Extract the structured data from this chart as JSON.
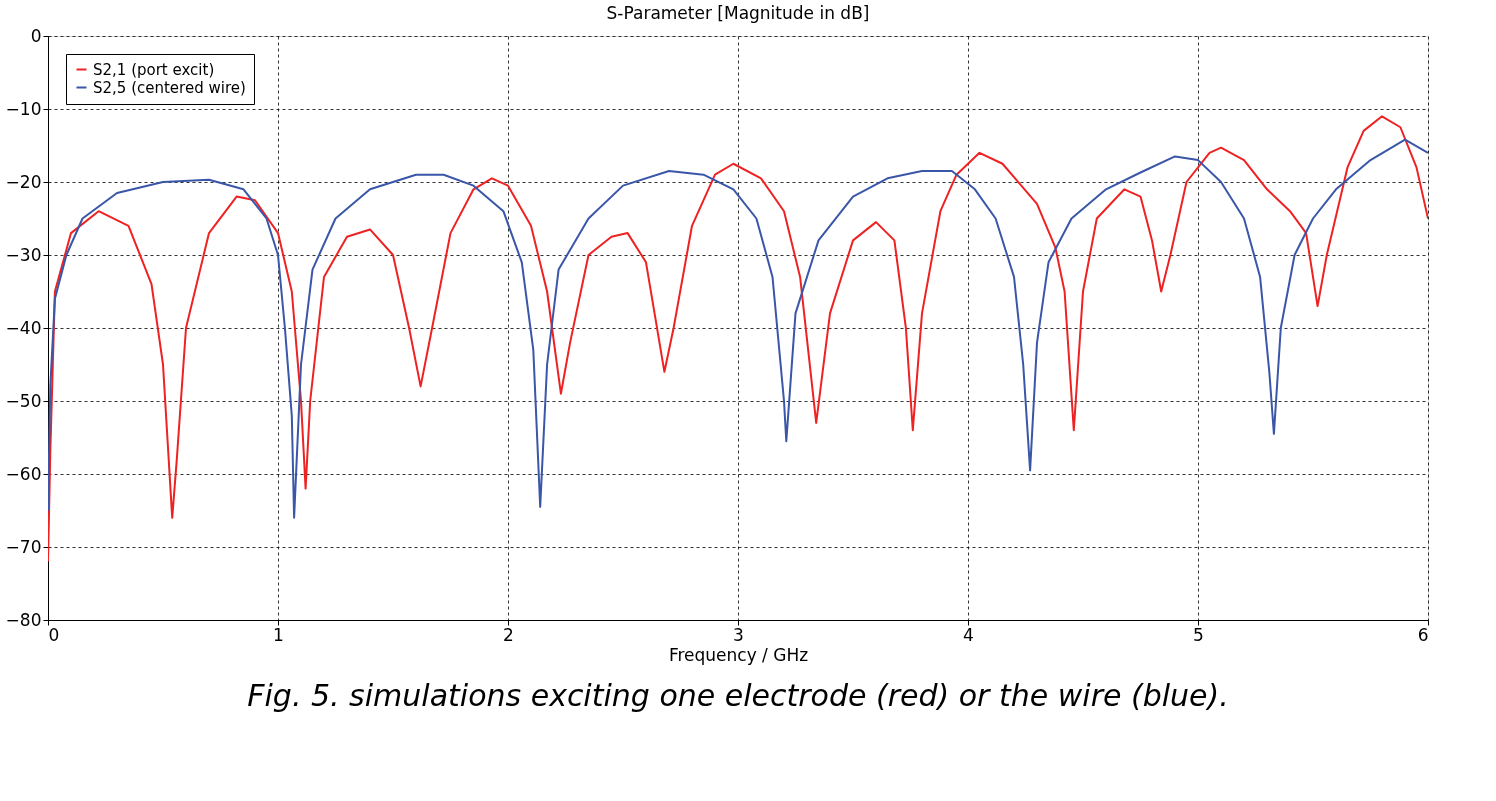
{
  "chart_data": {
    "type": "line",
    "title": "S-Parameter [Magnitude in dB]",
    "xlabel": "Frequency / GHz",
    "annotations": [
      "Fig. 5. simulations exciting one electrode (red) or the wire (blue)."
    ],
    "xlim": [
      0,
      6
    ],
    "xticks": [
      0,
      1,
      2,
      3,
      4,
      5,
      6
    ],
    "ylim": [
      -80,
      0
    ],
    "yticks": [
      -80,
      -70,
      -60,
      -50,
      -40,
      -30,
      -20,
      -10,
      0
    ],
    "grid": true,
    "legend": "top left",
    "line_style": "solid",
    "marker": "none",
    "series": [
      {
        "name": "S2,1 (port excit)",
        "color": "#ee2222",
        "x": [
          0,
          0.01,
          0.03,
          0.1,
          0.22,
          0.35,
          0.45,
          0.5,
          0.54,
          0.56,
          0.6,
          0.7,
          0.82,
          0.9,
          1.0,
          1.06,
          1.1,
          1.12,
          1.14,
          1.2,
          1.3,
          1.4,
          1.5,
          1.57,
          1.62,
          1.67,
          1.75,
          1.85,
          1.93,
          2.0,
          2.1,
          2.17,
          2.23,
          2.27,
          2.35,
          2.45,
          2.52,
          2.6,
          2.68,
          2.72,
          2.8,
          2.9,
          2.98,
          3.1,
          3.2,
          3.27,
          3.34,
          3.4,
          3.5,
          3.6,
          3.68,
          3.73,
          3.76,
          3.8,
          3.88,
          3.95,
          4.05,
          4.15,
          4.3,
          4.38,
          4.42,
          4.46,
          4.5,
          4.56,
          4.68,
          4.75,
          4.8,
          4.84,
          4.88,
          4.95,
          5.05,
          5.1,
          5.2,
          5.3,
          5.4,
          5.47,
          5.52,
          5.56,
          5.65,
          5.72,
          5.8,
          5.88,
          5.95,
          6.0
        ],
        "values": [
          -72,
          -57,
          -35,
          -27,
          -24,
          -26,
          -34,
          -45,
          -66,
          -58,
          -40,
          -27,
          -22,
          -22.5,
          -27,
          -35,
          -50,
          -62,
          -50,
          -33,
          -27.5,
          -26.5,
          -30,
          -40,
          -48,
          -40,
          -27,
          -21,
          -19.5,
          -20.5,
          -26,
          -35,
          -49,
          -42,
          -30,
          -27.5,
          -27,
          -31,
          -46,
          -40,
          -26,
          -19,
          -17.5,
          -19.5,
          -24,
          -33,
          -53,
          -38,
          -28,
          -25.5,
          -28,
          -40,
          -54,
          -38,
          -24,
          -19,
          -16,
          -17.5,
          -23,
          -29,
          -35,
          -54,
          -35,
          -25,
          -21,
          -22,
          -28,
          -35,
          -30,
          -20,
          -16,
          -15.3,
          -17,
          -21,
          -24,
          -27,
          -37,
          -30,
          -18,
          -13,
          -11,
          -12.5,
          -18,
          -25
        ]
      },
      {
        "name": "S2,5 (centered wire)",
        "color": "#3a56a8",
        "x": [
          0,
          0.01,
          0.03,
          0.08,
          0.15,
          0.3,
          0.5,
          0.7,
          0.85,
          0.95,
          1.0,
          1.03,
          1.06,
          1.07,
          1.1,
          1.15,
          1.25,
          1.4,
          1.6,
          1.72,
          1.85,
          1.98,
          2.06,
          2.11,
          2.14,
          2.17,
          2.22,
          2.35,
          2.5,
          2.7,
          2.85,
          2.98,
          3.08,
          3.15,
          3.2,
          3.21,
          3.25,
          3.35,
          3.5,
          3.65,
          3.8,
          3.93,
          4.03,
          4.12,
          4.2,
          4.24,
          4.27,
          4.3,
          4.35,
          4.45,
          4.6,
          4.75,
          4.9,
          5.0,
          5.1,
          5.2,
          5.27,
          5.31,
          5.33,
          5.36,
          5.42,
          5.5,
          5.6,
          5.75,
          5.9,
          6.0
        ],
        "values": [
          -65,
          -48,
          -36,
          -30,
          -25,
          -21.5,
          -20,
          -19.7,
          -21,
          -25,
          -30,
          -40,
          -52,
          -66,
          -45,
          -32,
          -25,
          -21,
          -19,
          -19,
          -20.5,
          -24,
          -31,
          -43,
          -64.5,
          -45,
          -32,
          -25,
          -20.5,
          -18.5,
          -19,
          -21,
          -25,
          -33,
          -50,
          -55.5,
          -38,
          -28,
          -22,
          -19.5,
          -18.5,
          -18.5,
          -21,
          -25,
          -33,
          -45,
          -59.5,
          -42,
          -31,
          -25,
          -21,
          -18.7,
          -16.5,
          -17,
          -20,
          -25,
          -33,
          -46,
          -54.5,
          -40,
          -30,
          -25,
          -21,
          -17,
          -14.2,
          -16
        ]
      }
    ]
  }
}
